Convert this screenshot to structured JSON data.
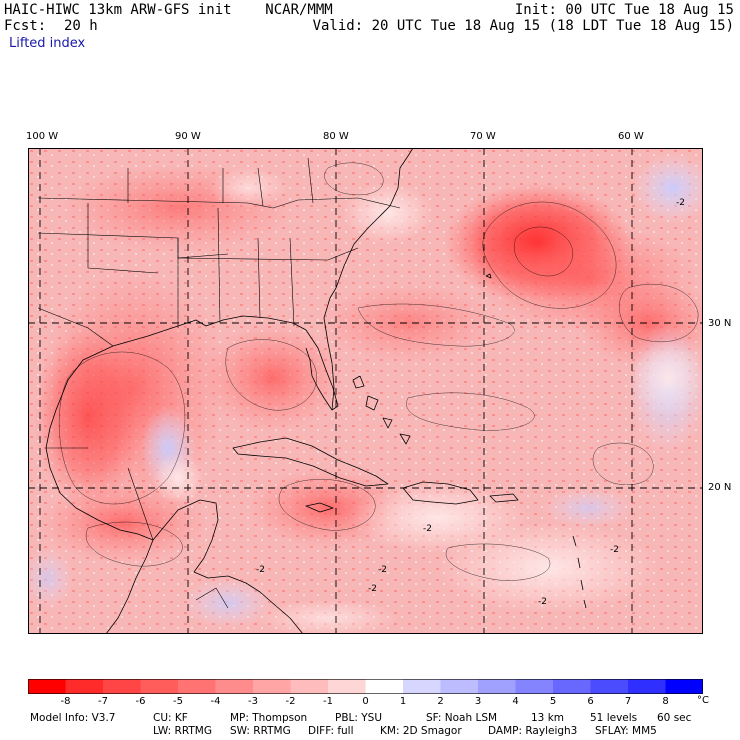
{
  "header": {
    "title": "HAIC-HIWC 13km ARW-GFS init    NCAR/MMM",
    "init": "Init: 00 UTC Tue 18 Aug 15",
    "fcst_label": "Fcst:",
    "fcst_value": "20 h",
    "valid": "Valid: 20 UTC Tue 18 Aug 15 (18 LDT Tue 18 Aug 15)",
    "field": "Lifted index"
  },
  "map": {
    "lon_labels": [
      "100 W",
      "90 W",
      "80 W",
      "70 W",
      "60 W"
    ],
    "lat_labels": [
      "30 N",
      "20 N"
    ],
    "contour_labels": [
      "-2",
      "-2",
      "-2",
      "-2",
      "-2",
      "-2",
      "-2"
    ],
    "colors": {
      "ocean_base": "#f7c2c2",
      "deep": "#ff3030",
      "positive": "#d8dcff"
    }
  },
  "colorbar": {
    "ticks": [
      "-8",
      "-7",
      "-6",
      "-5",
      "-4",
      "-3",
      "-2",
      "-1",
      "0",
      "1",
      "2",
      "3",
      "4",
      "5",
      "6",
      "7",
      "8"
    ],
    "unit": "°C",
    "colors": [
      "#ff0000",
      "#ff2a2a",
      "#ff4545",
      "#ff5c5c",
      "#ff7373",
      "#ff8c8c",
      "#ffa5a5",
      "#ffbcbc",
      "#ffd6d6",
      "#ffffff",
      "#d6d6ff",
      "#bcbcff",
      "#a0a0ff",
      "#8484ff",
      "#6868ff",
      "#4c4cff",
      "#2f2fff",
      "#0000ff"
    ]
  },
  "footer": {
    "line1": [
      "Model Info: V3.7",
      "CU: KF",
      "MP: Thompson",
      "PBL: YSU",
      "SF: Noah LSM",
      "13 km",
      "51 levels",
      "60 sec"
    ],
    "line2": [
      "LW: RRTMG",
      "SW: RRTMG",
      "DIFF: full",
      "KM: 2D Smagor",
      "DAMP: Rayleigh3",
      "SFLAY: MM5"
    ]
  }
}
